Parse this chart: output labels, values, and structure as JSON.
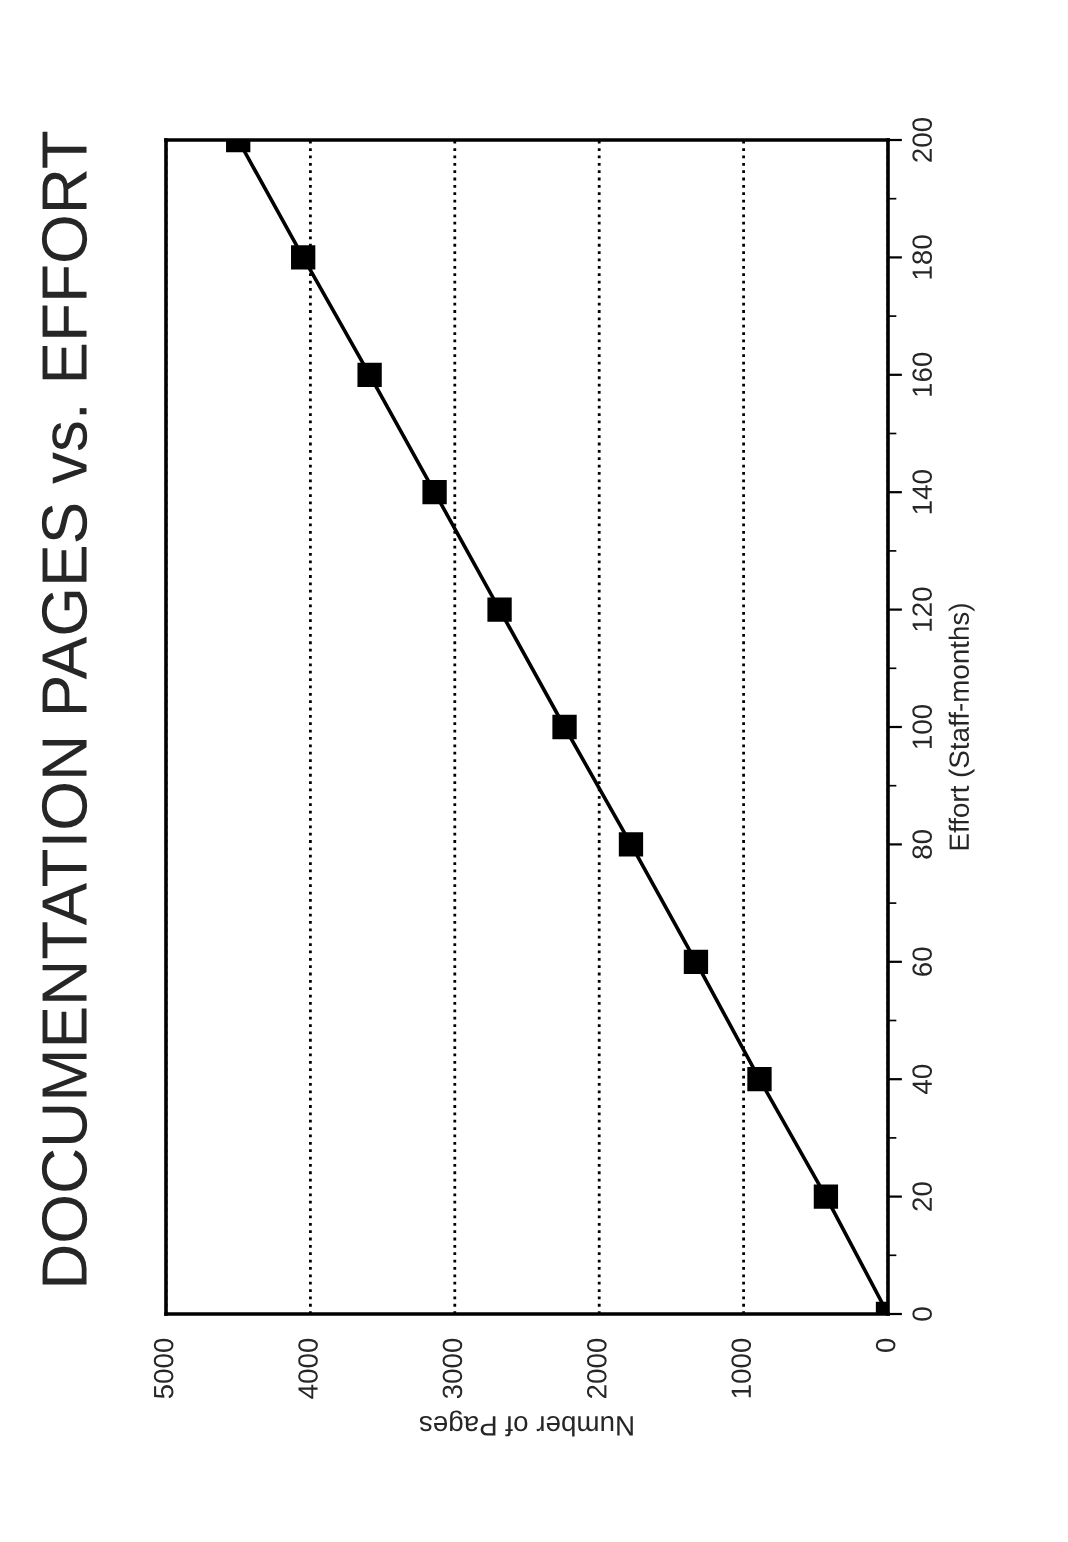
{
  "chart_data": {
    "type": "line",
    "title": "DOCUMENTATION PAGES vs. EFFORT",
    "orientation": "horizontal",
    "x": [
      0,
      20,
      40,
      60,
      80,
      100,
      120,
      140,
      160,
      180,
      200
    ],
    "series": [
      {
        "color": "#000000",
        "values": [
          0,
          430,
          890,
          1330,
          1780,
          2240,
          2690,
          3140,
          3590,
          4050,
          4500
        ]
      }
    ],
    "xlabel": "Number of Pages",
    "ylabel": "Effort (Staff-months)",
    "xlim": [
      5000,
      0
    ],
    "xticks": [
      0,
      1000,
      2000,
      3000,
      4000,
      5000
    ],
    "ylim": [
      0,
      200
    ],
    "yticks": [
      0,
      20,
      40,
      60,
      80,
      100,
      120,
      140,
      160,
      180,
      200
    ],
    "grid": "x",
    "marker": "square",
    "line_style": "solid"
  }
}
